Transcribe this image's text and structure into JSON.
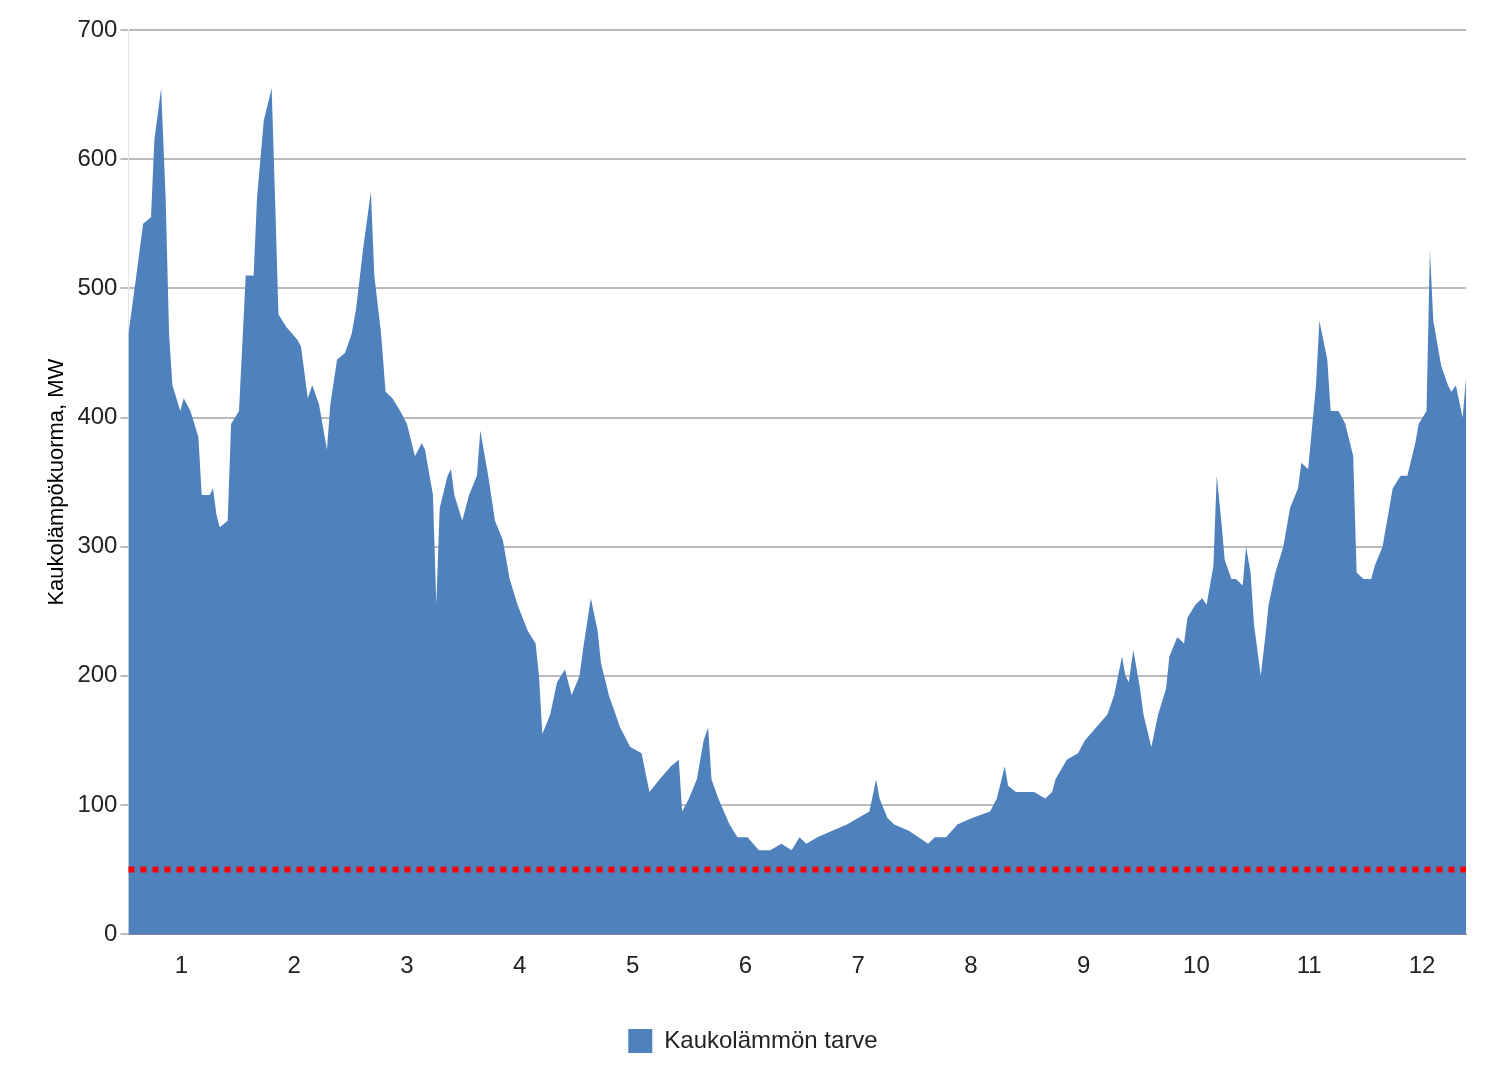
{
  "chart_data": {
    "type": "area",
    "ylabel": "Kaukolämpökuorma, MW",
    "xlim": [
      0.53,
      12.39
    ],
    "xticks": [
      1,
      2,
      3,
      4,
      5,
      6,
      7,
      8,
      9,
      10,
      11,
      12
    ],
    "ylim": [
      0,
      700
    ],
    "yticks": [
      0,
      100,
      200,
      300,
      400,
      500,
      600,
      700
    ],
    "grid": "y",
    "legend": "bottom",
    "x": [
      0.53,
      0.6,
      0.66,
      0.73,
      0.76,
      0.82,
      0.86,
      0.89,
      0.92,
      0.99,
      1.02,
      1.08,
      1.15,
      1.18,
      1.25,
      1.28,
      1.31,
      1.34,
      1.41,
      1.44,
      1.51,
      1.57,
      1.64,
      1.67,
      1.73,
      1.8,
      1.83,
      1.86,
      1.93,
      2.03,
      2.06,
      2.12,
      2.16,
      2.22,
      2.29,
      2.32,
      2.38,
      2.45,
      2.51,
      2.55,
      2.61,
      2.68,
      2.71,
      2.77,
      2.81,
      2.87,
      2.94,
      3.0,
      3.07,
      3.13,
      3.16,
      3.23,
      3.26,
      3.29,
      3.36,
      3.39,
      3.42,
      3.49,
      3.55,
      3.62,
      3.65,
      3.72,
      3.78,
      3.85,
      3.91,
      3.98,
      4.07,
      4.14,
      4.17,
      4.2,
      4.27,
      4.33,
      4.4,
      4.46,
      4.53,
      4.56,
      4.63,
      4.69,
      4.72,
      4.79,
      4.89,
      4.98,
      5.08,
      5.15,
      5.24,
      5.34,
      5.41,
      5.44,
      5.5,
      5.57,
      5.63,
      5.67,
      5.7,
      5.76,
      5.86,
      5.93,
      6.02,
      6.12,
      6.22,
      6.32,
      6.41,
      6.48,
      6.54,
      6.64,
      6.77,
      6.9,
      7.0,
      7.1,
      7.16,
      7.19,
      7.26,
      7.32,
      7.45,
      7.62,
      7.68,
      7.78,
      7.88,
      8.01,
      8.17,
      8.23,
      8.3,
      8.33,
      8.4,
      8.46,
      8.56,
      8.66,
      8.72,
      8.75,
      8.85,
      8.95,
      9.01,
      9.11,
      9.21,
      9.27,
      9.34,
      9.37,
      9.4,
      9.44,
      9.5,
      9.53,
      9.6,
      9.66,
      9.73,
      9.76,
      9.83,
      9.89,
      9.92,
      9.99,
      10.05,
      10.09,
      10.15,
      10.18,
      10.22,
      10.25,
      10.31,
      10.35,
      10.41,
      10.44,
      10.48,
      10.51,
      10.57,
      10.61,
      10.64,
      10.7,
      10.77,
      10.83,
      10.9,
      10.93,
      10.99,
      11.06,
      11.09,
      11.16,
      11.19,
      11.26,
      11.32,
      11.39,
      11.42,
      11.48,
      11.55,
      11.58,
      11.65,
      11.71,
      11.74,
      11.81,
      11.87,
      11.94,
      11.97,
      12.04,
      12.07,
      12.1,
      12.17,
      12.23,
      12.26,
      12.3,
      12.36,
      12.39
    ],
    "series": [
      {
        "name": "Kaukolämmön tarve",
        "color": "#4f81bd",
        "values": [
          465,
          510,
          550,
          555,
          615,
          655,
          570,
          465,
          425,
          405,
          415,
          405,
          385,
          340,
          340,
          345,
          325,
          315,
          320,
          395,
          405,
          510,
          510,
          570,
          630,
          655,
          570,
          480,
          470,
          460,
          455,
          415,
          425,
          410,
          375,
          410,
          445,
          450,
          465,
          485,
          530,
          575,
          510,
          465,
          420,
          415,
          405,
          395,
          370,
          380,
          375,
          340,
          255,
          330,
          355,
          360,
          340,
          320,
          340,
          355,
          390,
          355,
          320,
          305,
          275,
          255,
          235,
          225,
          200,
          155,
          170,
          195,
          205,
          185,
          200,
          220,
          260,
          235,
          210,
          185,
          160,
          145,
          140,
          110,
          120,
          130,
          135,
          95,
          105,
          120,
          150,
          160,
          120,
          105,
          85,
          75,
          75,
          65,
          65,
          70,
          65,
          75,
          70,
          75,
          80,
          85,
          90,
          95,
          120,
          105,
          90,
          85,
          80,
          70,
          75,
          75,
          85,
          90,
          95,
          105,
          130,
          115,
          110,
          110,
          110,
          105,
          110,
          120,
          135,
          140,
          150,
          160,
          170,
          185,
          215,
          200,
          195,
          220,
          190,
          170,
          145,
          170,
          190,
          215,
          230,
          225,
          245,
          255,
          260,
          255,
          285,
          355,
          320,
          290,
          275,
          275,
          270,
          300,
          280,
          240,
          200,
          230,
          255,
          280,
          300,
          330,
          345,
          365,
          360,
          425,
          475,
          445,
          405,
          405,
          395,
          370,
          280,
          275,
          275,
          285,
          300,
          330,
          345,
          355,
          355,
          380,
          395,
          405,
          530,
          475,
          440,
          425,
          420,
          425,
          400,
          430
        ]
      }
    ],
    "ref_lines": [
      {
        "axis": "y",
        "value": 50,
        "color": "#ff0000",
        "line_style": "dotted"
      }
    ]
  }
}
